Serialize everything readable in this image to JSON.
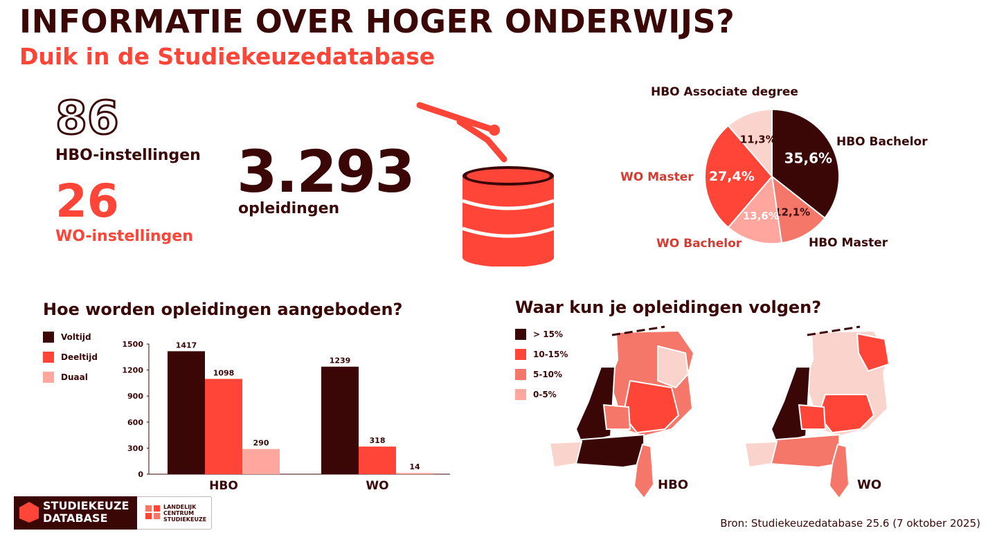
{
  "header": {
    "title": "INFORMATIE OVER HOGER ONDERWIJS?",
    "subtitle": "Duik in de Studiekeuzedatabase"
  },
  "stats": {
    "hbo_count": "86",
    "hbo_label": "HBO-instellingen",
    "wo_count": "26",
    "wo_label": "WO-instellingen",
    "total_count": "3.293",
    "total_label": "opleidingen"
  },
  "colors": {
    "dark": "#3a0606",
    "red": "#ff4538",
    "salmon": "#f5776a",
    "light": "#ffa79e",
    "pale": "#fbd3cd"
  },
  "bar_section": {
    "title": "Hoe worden opleidingen aangeboden?"
  },
  "map_section": {
    "title": "Waar kun je opleidingen volgen?",
    "legend": [
      "> 15%",
      "10-15%",
      "5-10%",
      "0-5%"
    ],
    "maps": [
      "HBO",
      "WO"
    ]
  },
  "chart_data": [
    {
      "type": "pie",
      "labels": [
        "HBO Bachelor",
        "HBO Master",
        "WO Bachelor",
        "WO Master",
        "HBO Associate degree"
      ],
      "values": [
        35.6,
        12.1,
        13.6,
        27.4,
        11.3
      ],
      "value_labels": [
        "35,6%",
        "12,1%",
        "13,6%",
        "27,4%",
        "11,3%"
      ],
      "colors": [
        "#3a0606",
        "#f5776a",
        "#ffa79e",
        "#ff4538",
        "#fbd3cd"
      ]
    },
    {
      "type": "bar",
      "categories": [
        "HBO",
        "WO"
      ],
      "series": [
        {
          "name": "Voltijd",
          "values": [
            1417,
            1239
          ],
          "color": "#3a0606"
        },
        {
          "name": "Deeltijd",
          "values": [
            1098,
            318
          ],
          "color": "#ff4538"
        },
        {
          "name": "Duaal",
          "values": [
            290,
            14
          ],
          "color": "#ffa79e"
        }
      ],
      "yticks": [
        0,
        300,
        600,
        900,
        1200,
        1500
      ],
      "ylim": [
        0,
        1500
      ],
      "legend": "top-left"
    }
  ],
  "footer": {
    "source": "Bron: Studiekeuzedatabase 25.6 (7 oktober 2025)",
    "logo_line1": "STUDIEKEUZE",
    "logo_line2": "DATABASE",
    "logo2_line1": "LANDELIJK",
    "logo2_line2": "CENTRUM",
    "logo2_line3": "STUDIEKEUZE"
  }
}
